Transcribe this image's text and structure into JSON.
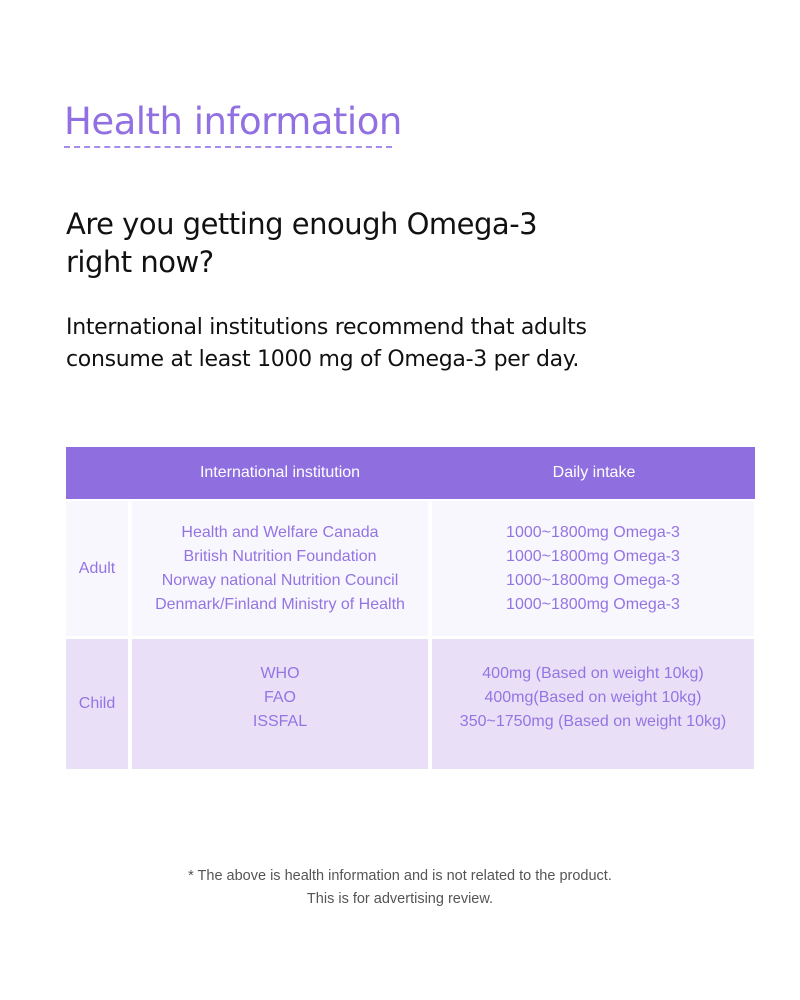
{
  "title": "Health information",
  "heading": [
    "Are you getting enough Omega-3",
    "right now?"
  ],
  "description": [
    "International institutions recommend that adults",
    "consume at least 1000 mg of Omega-3 per day."
  ],
  "table": {
    "headers": [
      "International institution",
      "Daily intake"
    ],
    "rows": [
      {
        "group": "Adult",
        "institutions": [
          "Health and Welfare Canada",
          "British Nutrition Foundation",
          "Norway national Nutrition Council",
          "Denmark/Finland Ministry of Health"
        ],
        "intakes": [
          "1000~1800mg Omega-3",
          "1000~1800mg Omega-3",
          "1000~1800mg Omega-3",
          "1000~1800mg Omega-3"
        ]
      },
      {
        "group": "Child",
        "institutions": [
          "WHO",
          "FAO",
          "ISSFAL"
        ],
        "intakes": [
          "400mg (Based on weight 10kg)",
          "400mg(Based on weight 10kg)",
          "350~1750mg (Based on weight 10kg)"
        ]
      }
    ]
  },
  "footnote": [
    "* The above is health information and is not related to the product.",
    "This is for advertising review."
  ],
  "colors": {
    "accent": "#8f6ee0",
    "row_adult": "#f8f7fd",
    "row_child": "#e9e0f8"
  }
}
